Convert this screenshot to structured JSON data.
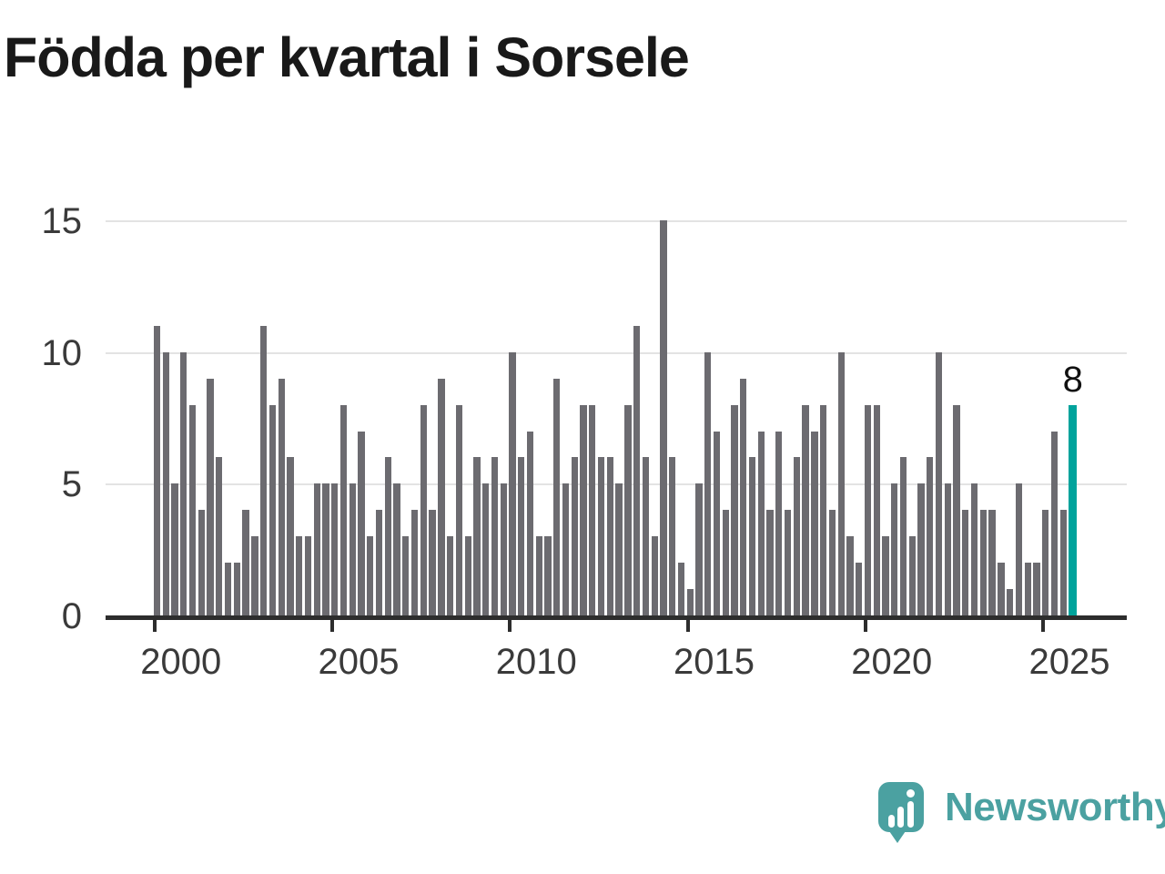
{
  "chart_data": {
    "type": "bar",
    "title": "Födda per kvartal i Sorsele",
    "frequency": "quarterly",
    "start_period": "2000 Q1",
    "end_period": "2025 Q4",
    "values": [
      11,
      10,
      5,
      10,
      8,
      4,
      9,
      6,
      2,
      2,
      4,
      3,
      11,
      8,
      9,
      6,
      3,
      3,
      5,
      5,
      5,
      8,
      5,
      7,
      3,
      4,
      6,
      5,
      3,
      4,
      8,
      4,
      9,
      3,
      8,
      3,
      6,
      5,
      6,
      5,
      10,
      6,
      7,
      3,
      3,
      9,
      5,
      6,
      8,
      8,
      6,
      6,
      5,
      8,
      11,
      6,
      3,
      15,
      6,
      2,
      1,
      5,
      10,
      7,
      4,
      8,
      9,
      6,
      7,
      4,
      7,
      4,
      6,
      8,
      7,
      8,
      4,
      10,
      3,
      2,
      8,
      8,
      3,
      5,
      6,
      3,
      5,
      6,
      10,
      5,
      8,
      4,
      5,
      4,
      4,
      2,
      1,
      5,
      2,
      2,
      4,
      7,
      4,
      8
    ],
    "y_ticks": [
      0,
      5,
      10,
      15
    ],
    "ylim": [
      0,
      15
    ],
    "x_tick_labels": [
      "2000",
      "2005",
      "2010",
      "2015",
      "2020",
      "2025"
    ],
    "grid": "horizontal",
    "legend": "none",
    "highlight_last": true,
    "annotation": "8",
    "colors": {
      "bar": "#6c6b70",
      "highlight": "#00a39c",
      "grid": "#e3e3e3",
      "axis": "#2d2d2d",
      "label": "#3a3a3a"
    }
  },
  "logo": {
    "text": "Newsworthy",
    "color": "#4ba1a1"
  }
}
